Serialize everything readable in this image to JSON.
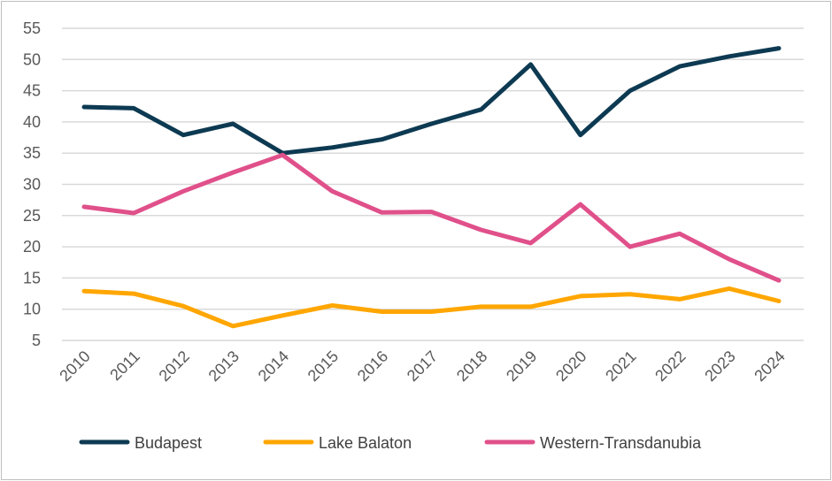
{
  "chart_data": {
    "type": "line",
    "title": "",
    "xlabel": "",
    "ylabel": "",
    "x": [
      "2010",
      "2011",
      "2012",
      "2013",
      "2014",
      "2015",
      "2016",
      "2017",
      "2018",
      "2019",
      "2020",
      "2021",
      "2022",
      "2023",
      "2024"
    ],
    "yticks": [
      "5",
      "10",
      "15",
      "20",
      "25",
      "30",
      "35",
      "40",
      "45",
      "50",
      "55"
    ],
    "ylim": [
      5,
      55
    ],
    "grid": true,
    "legend_position": "bottom",
    "series": [
      {
        "name": "Budapest",
        "color": "#0d3a52",
        "values": [
          42.4,
          42.2,
          37.9,
          39.7,
          35.0,
          35.9,
          37.2,
          39.7,
          42.0,
          49.2,
          37.9,
          45.0,
          48.9,
          50.5,
          51.8
        ]
      },
      {
        "name": "Lake Balaton",
        "color": "#ffa600",
        "values": [
          12.9,
          12.5,
          10.5,
          7.3,
          9.0,
          10.6,
          9.6,
          9.6,
          10.4,
          10.4,
          12.1,
          12.4,
          11.6,
          13.3,
          11.3
        ]
      },
      {
        "name": "Western-Transdanubia",
        "color": "#e0508a",
        "values": [
          26.4,
          25.4,
          28.9,
          31.9,
          34.7,
          28.9,
          25.5,
          25.6,
          22.7,
          20.6,
          26.8,
          20.0,
          22.1,
          18.0,
          14.6
        ]
      }
    ]
  }
}
